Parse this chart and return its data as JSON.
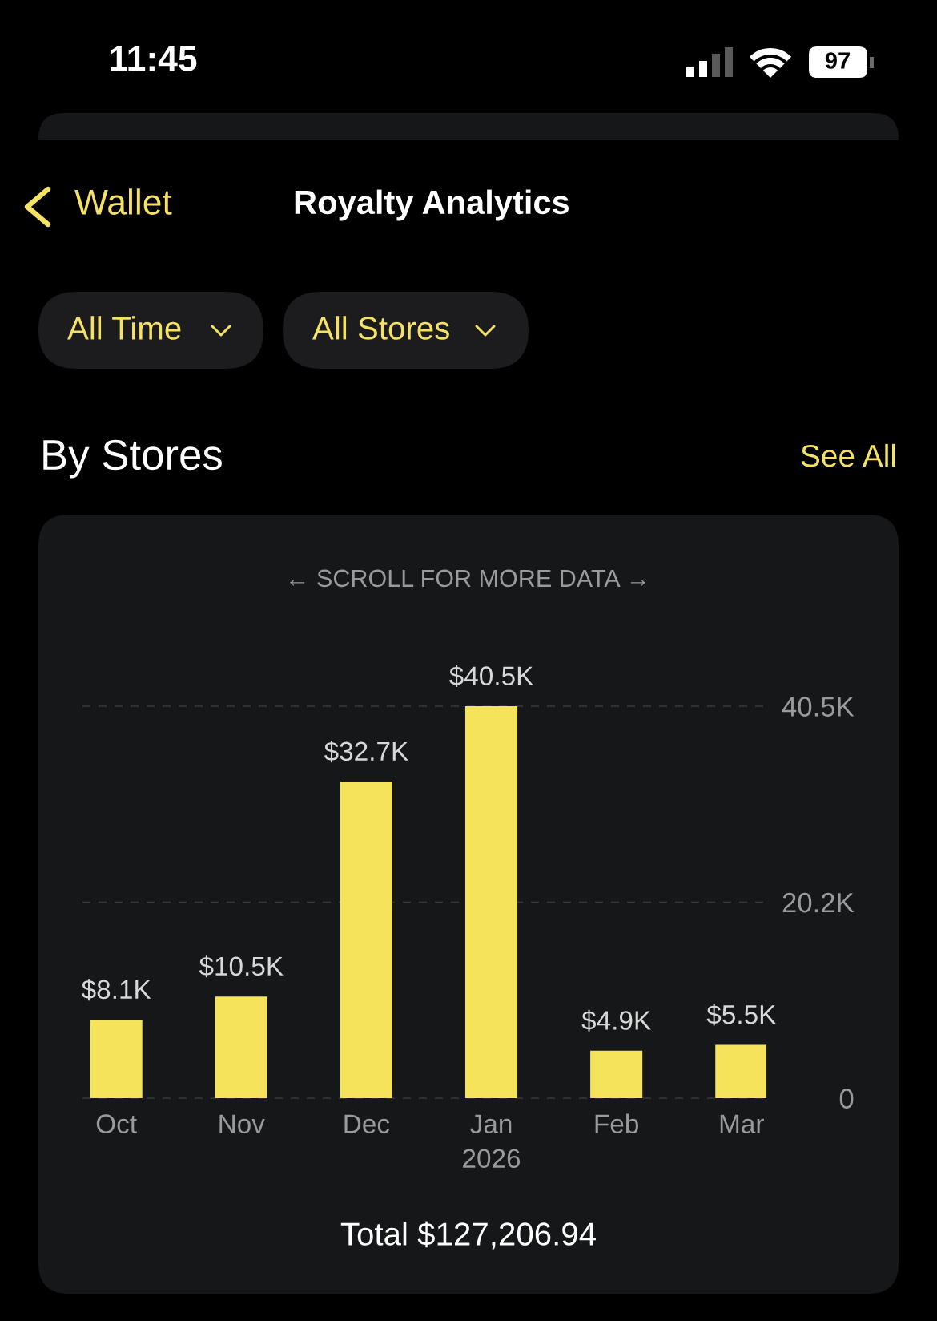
{
  "chart_data": {
    "type": "bar",
    "title": "Royalty Analytics",
    "subtitle": "By Stores",
    "categories": [
      "Oct",
      "Nov",
      "Dec",
      "Jan\n2026",
      "Feb",
      "Mar"
    ],
    "values": [
      8.1,
      10.5,
      32.7,
      40.5,
      4.9,
      5.5
    ],
    "value_labels": [
      "$8.1K",
      "$10.5K",
      "$32.7K",
      "$40.5K",
      "$4.9K",
      "$5.5K"
    ],
    "color": "#f6e35c",
    "ylim": [
      0,
      40.5
    ],
    "yticks": [
      0,
      {
        "value": 20.25,
        "label": "20.2K"
      },
      {
        "value": 40.5,
        "label": "40.5K"
      }
    ],
    "grid": "y",
    "annotations": [
      "11:45",
      "97",
      "Wallet",
      "All Time",
      "All Stores",
      "See All",
      "← SCROLL FOR MORE DATA →",
      "Total $127,206.94"
    ]
  }
}
